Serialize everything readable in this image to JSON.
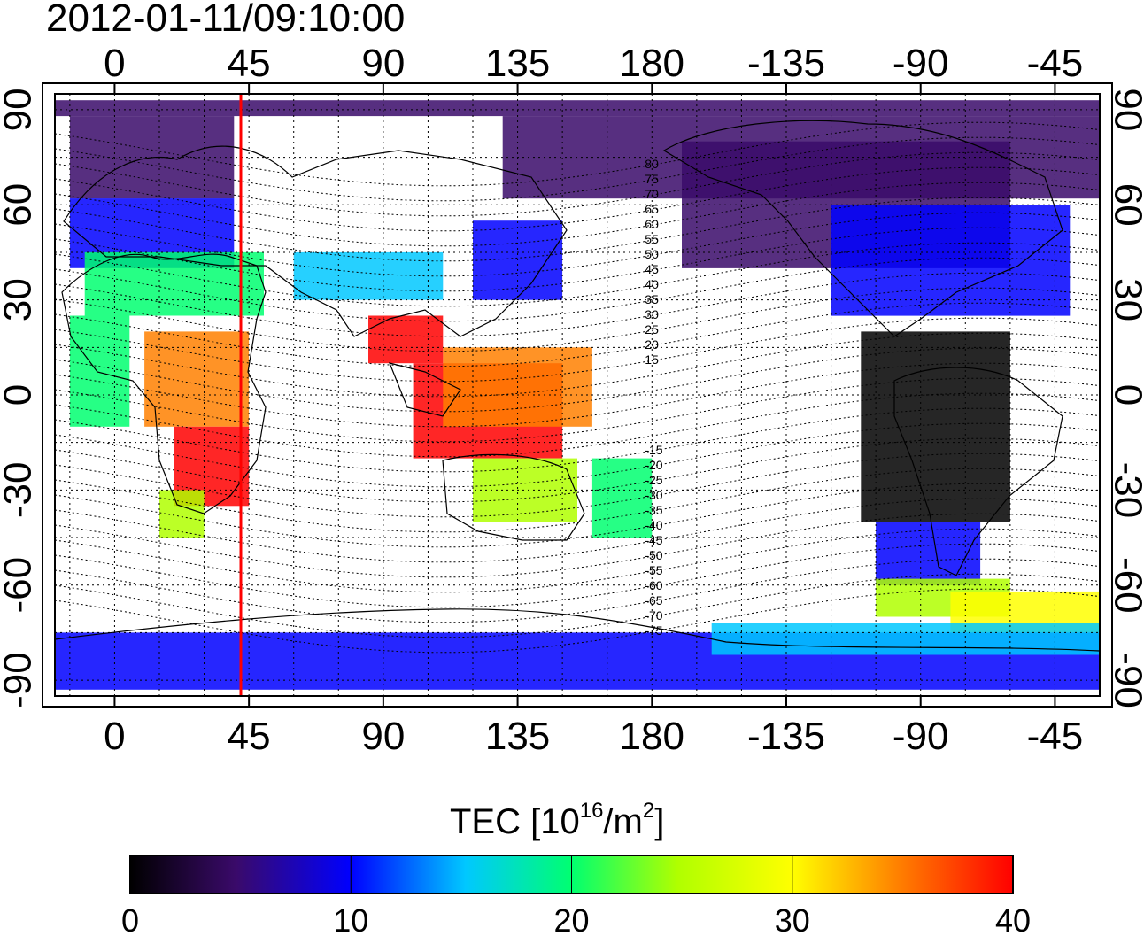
{
  "timestamp": "2012-01-11/09:10:00",
  "map": {
    "top_lon_ticks": [
      "0",
      "45",
      "90",
      "135",
      "180",
      "-135",
      "-90",
      "-45"
    ],
    "bottom_lon_ticks": [
      "0",
      "45",
      "90",
      "135",
      "180",
      "-135",
      "-90",
      "-45"
    ],
    "left_lat_ticks": [
      "90",
      "60",
      "30",
      "0",
      "-30",
      "-60",
      "-90"
    ],
    "right_lat_ticks": [
      "90",
      "60",
      "30",
      "0",
      "-30",
      "-60",
      "-90"
    ],
    "lon_range": [
      -20,
      330
    ],
    "lat_range": [
      -95,
      95
    ],
    "meridian_marker_lon": 45,
    "meridian_marker_color": "#ff0000",
    "magnetic_latitude_labels": [
      "80",
      "75",
      "70",
      "65",
      "60",
      "55",
      "50",
      "45",
      "40",
      "35",
      "30",
      "25",
      "20",
      "15",
      "-15",
      "-20",
      "-25",
      "-30",
      "-35",
      "-40",
      "-45",
      "-50",
      "-55",
      "-60",
      "-65",
      "-70",
      "-75"
    ]
  },
  "colorbar": {
    "title_main": "TEC  [10",
    "title_exp1": "16",
    "title_mid": "/m",
    "title_exp2": "2",
    "title_end": "]",
    "ticks": [
      "0",
      "10",
      "20",
      "30",
      "40"
    ],
    "range": [
      0,
      40
    ],
    "colors": [
      "#000000",
      "#3a0a6a",
      "#0000ff",
      "#00c8ff",
      "#00ff70",
      "#b0ff00",
      "#ffff00",
      "#ff8000",
      "#ff0000"
    ]
  }
}
